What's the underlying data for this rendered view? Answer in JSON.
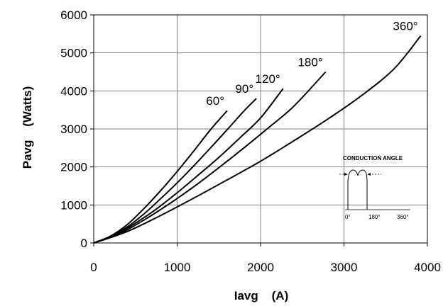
{
  "chart_data": {
    "type": "line",
    "xlabel": "Iavg    (A)",
    "ylabel": "Pavg    (Watts)",
    "xlim": [
      0,
      4000
    ],
    "ylim": [
      0,
      6000
    ],
    "x_ticks": [
      0,
      1000,
      2000,
      3000,
      4000
    ],
    "y_ticks": [
      0,
      1000,
      2000,
      3000,
      4000,
      5000,
      6000
    ],
    "grid": true,
    "legend": "none",
    "series": [
      {
        "name": "60°",
        "x": [
          0,
          200,
          400,
          600,
          800,
          1000,
          1200,
          1400,
          1600
        ],
        "y": [
          0,
          180,
          480,
          900,
          1370,
          1880,
          2420,
          2980,
          3480
        ]
      },
      {
        "name": "90°",
        "x": [
          0,
          200,
          400,
          600,
          800,
          1000,
          1200,
          1400,
          1600,
          1800,
          1950
        ],
        "y": [
          0,
          170,
          420,
          760,
          1160,
          1580,
          2030,
          2500,
          2980,
          3470,
          3800
        ]
      },
      {
        "name": "120°",
        "x": [
          0,
          250,
          500,
          750,
          1000,
          1250,
          1500,
          1750,
          2000,
          2270
        ],
        "y": [
          0,
          200,
          520,
          890,
          1320,
          1780,
          2250,
          2760,
          3290,
          4060
        ]
      },
      {
        "name": "180°",
        "x": [
          0,
          300,
          600,
          900,
          1200,
          1500,
          1800,
          2100,
          2400,
          2780
        ],
        "y": [
          0,
          230,
          600,
          1020,
          1480,
          1980,
          2500,
          3040,
          3600,
          4500
        ]
      },
      {
        "name": "360°",
        "x": [
          0,
          400,
          800,
          1200,
          1600,
          2000,
          2400,
          2800,
          3200,
          3600,
          3920
        ],
        "y": [
          0,
          300,
          720,
          1180,
          1660,
          2150,
          2690,
          3250,
          3860,
          4580,
          5450
        ]
      }
    ],
    "inset": {
      "title": "CONDUCTION ANGLE",
      "tick_labels": [
        "0°",
        "180°",
        "360°"
      ]
    }
  }
}
